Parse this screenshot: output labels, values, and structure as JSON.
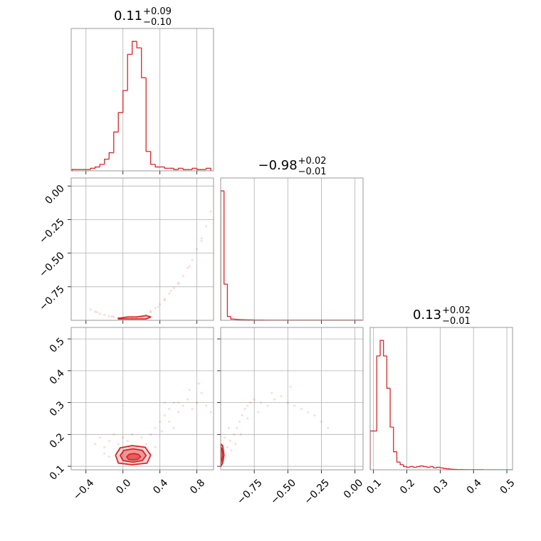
{
  "chart_data": [
    {
      "type": "histogram",
      "title": "0.11",
      "title_sup": "+0.09",
      "title_sub": "−0.10",
      "color": "#d62728",
      "grid": true,
      "xtick_labels": false,
      "bins": [
        -0.55,
        -0.5,
        -0.45,
        -0.4,
        -0.35,
        -0.3,
        -0.25,
        -0.2,
        -0.15,
        -0.1,
        -0.05,
        0,
        0.05,
        0.1,
        0.15,
        0.2,
        0.25,
        0.3,
        0.35,
        0.4,
        0.45,
        0.5,
        0.55,
        0.6,
        0.65,
        0.7,
        0.75,
        0.8,
        0.85,
        0.9,
        0.95
      ],
      "values": [
        1,
        1,
        1,
        1,
        2,
        3,
        5,
        9,
        14,
        30,
        45,
        62,
        90,
        100,
        95,
        72,
        15,
        5,
        3,
        3,
        2,
        2,
        1,
        2,
        1,
        1,
        2,
        1,
        1,
        2
      ],
      "xlim": [
        -0.56,
        0.98
      ],
      "xticks": [
        {
          "value": -0.4,
          "label": "−0.4"
        },
        {
          "value": 0,
          "label": "0.0"
        },
        0.4,
        0.8
      ],
      "ylim": [
        0,
        110
      ]
    },
    {
      "type": "scatter",
      "color": "#d62728",
      "grid": true,
      "xtick_labels": false,
      "ytick_labels": true,
      "x": [
        -0.35,
        -0.3,
        -0.25,
        -0.2,
        -0.15,
        -0.1,
        -0.05,
        0.0,
        0.05,
        0.1,
        0.15,
        0.2,
        0.25,
        0.3,
        0.35,
        0.4,
        0.45,
        0.5,
        0.55,
        0.6,
        0.65,
        0.7,
        0.75,
        0.8,
        0.85,
        0.9,
        0.95,
        0.3,
        0.45,
        0.6,
        0.72,
        0.85,
        -0.28,
        -0.12,
        0.38,
        0.52
      ],
      "y": [
        -0.92,
        -0.935,
        -0.95,
        -0.96,
        -0.97,
        -0.975,
        -0.98,
        -0.985,
        -0.985,
        -0.985,
        -0.98,
        -0.975,
        -0.96,
        -0.94,
        -0.91,
        -0.88,
        -0.84,
        -0.8,
        -0.76,
        -0.72,
        -0.67,
        -0.61,
        -0.55,
        -0.47,
        -0.39,
        -0.3,
        -0.19,
        -0.93,
        -0.85,
        -0.73,
        -0.6,
        -0.41,
        -0.94,
        -0.97,
        -0.9,
        -0.78
      ],
      "contours": [
        {
          "x": [
            -0.05,
            0.05,
            0.15,
            0.25,
            0.3,
            0.25,
            0.15,
            0.05,
            -0.05
          ],
          "y": [
            -0.985,
            -0.975,
            -0.975,
            -0.965,
            -0.975,
            -0.99,
            -0.99,
            -0.99,
            -0.99
          ]
        }
      ],
      "xlim": [
        -0.56,
        0.98
      ],
      "xticks": [
        {
          "value": -0.4,
          "label": "−0.4"
        },
        {
          "value": 0,
          "label": "0.0"
        },
        0.4,
        0.8
      ],
      "ylim": [
        -1.0,
        0.06
      ],
      "yticks": [
        {
          "value": 0,
          "label": "0.00"
        },
        {
          "value": -0.25,
          "label": "−0.25"
        },
        {
          "value": -0.5,
          "label": "−0.50"
        },
        {
          "value": -0.75,
          "label": "−0.75"
        }
      ]
    },
    {
      "type": "histogram",
      "title": "−0.98",
      "title_sup": "+0.02",
      "title_sub": "−0.01",
      "color": "#d62728",
      "grid": true,
      "xtick_labels": false,
      "bins": [
        -1.0,
        -0.975,
        -0.95,
        -0.925,
        -0.9,
        -0.875,
        -0.85,
        -0.825,
        -0.8,
        -0.775,
        -0.75,
        -0.725,
        -0.7,
        -0.675,
        -0.65,
        -0.625,
        -0.6,
        -0.575,
        -0.55,
        -0.525,
        -0.5,
        -0.475,
        -0.45,
        -0.425,
        -0.4,
        -0.375,
        -0.35,
        -0.325,
        -0.3,
        -0.275,
        -0.25,
        -0.225,
        -0.2,
        -0.175,
        -0.15,
        -0.125,
        -0.1,
        -0.075,
        -0.05,
        -0.025,
        0.0,
        0.025,
        0.05
      ],
      "values": [
        1000,
        280,
        30,
        10,
        8,
        6,
        5,
        4,
        3,
        3,
        2,
        2,
        2,
        1,
        1,
        1,
        1,
        1,
        1,
        1,
        1,
        1,
        1,
        1,
        1,
        1,
        1,
        1,
        1,
        1,
        1,
        1,
        1,
        1,
        1,
        1,
        1,
        1,
        1,
        1,
        1,
        1
      ],
      "xlim": [
        -1.0,
        0.06
      ],
      "xticks": [
        {
          "value": -0.75,
          "label": "−0.75"
        },
        {
          "value": -0.5,
          "label": "−0.50"
        },
        {
          "value": -0.25,
          "label": "−0.25"
        },
        {
          "value": 0,
          "label": "0.00"
        }
      ],
      "ylim": [
        0,
        1100
      ]
    },
    {
      "type": "scatter",
      "color": "#d62728",
      "grid": true,
      "xtick_labels": true,
      "ytick_labels": true,
      "x": [
        -0.3,
        -0.25,
        -0.2,
        -0.15,
        -0.1,
        -0.05,
        0.0,
        0.05,
        0.1,
        0.2,
        0.25,
        0.3,
        0.35,
        0.4,
        0.45,
        0.5,
        0.55,
        0.6,
        0.65,
        0.7,
        0.75,
        0.8,
        0.85,
        0.9,
        0.95,
        0.42,
        0.5,
        0.6,
        0.72,
        0.82,
        -0.2,
        0.35,
        0.3,
        -0.15,
        0.45,
        0.55
      ],
      "y": [
        0.17,
        0.19,
        0.16,
        0.18,
        0.2,
        0.17,
        0.19,
        0.18,
        0.2,
        0.19,
        0.17,
        0.2,
        0.22,
        0.24,
        0.26,
        0.28,
        0.3,
        0.27,
        0.29,
        0.31,
        0.28,
        0.3,
        0.33,
        0.29,
        0.27,
        0.21,
        0.24,
        0.3,
        0.34,
        0.36,
        0.14,
        0.16,
        0.14,
        0.13,
        0.3,
        0.22
      ],
      "contours": [
        {
          "x": [
            -0.08,
            -0.03,
            0.1,
            0.24,
            0.3,
            0.26,
            0.1,
            -0.05
          ],
          "y": [
            0.135,
            0.158,
            0.165,
            0.16,
            0.135,
            0.11,
            0.105,
            0.11
          ]
        },
        {
          "x": [
            -0.03,
            0.01,
            0.11,
            0.21,
            0.25,
            0.21,
            0.11,
            0.0
          ],
          "y": [
            0.134,
            0.15,
            0.155,
            0.15,
            0.134,
            0.118,
            0.113,
            0.118
          ]
        },
        {
          "x": [
            0.04,
            0.07,
            0.12,
            0.17,
            0.19,
            0.16,
            0.11,
            0.06
          ],
          "y": [
            0.13,
            0.138,
            0.14,
            0.137,
            0.13,
            0.122,
            0.12,
            0.122
          ]
        }
      ],
      "xlim": [
        -0.56,
        0.98
      ],
      "xticks": [
        {
          "value": -0.4,
          "label": "−0.4"
        },
        {
          "value": 0,
          "label": "0.0"
        },
        0.4,
        0.8
      ],
      "ylim": [
        0.089,
        0.536
      ],
      "yticks": [
        0.1,
        0.2,
        0.3,
        0.4,
        0.5
      ]
    },
    {
      "type": "scatter",
      "color": "#d62728",
      "grid": true,
      "xtick_labels": true,
      "ytick_labels": false,
      "x": [
        -0.98,
        -0.95,
        -0.93,
        -0.9,
        -0.88,
        -0.86,
        -0.84,
        -0.82,
        -0.8,
        -0.78,
        -0.75,
        -0.7,
        -0.65,
        -0.6,
        -0.55,
        -0.5,
        -0.45,
        -0.4,
        -0.35,
        -0.3,
        -0.25,
        -0.2,
        -0.92,
        -0.89,
        -0.85,
        -0.8,
        -0.62,
        -0.48,
        -0.97,
        -0.94,
        -0.72
      ],
      "y": [
        0.13,
        0.16,
        0.18,
        0.2,
        0.22,
        0.24,
        0.26,
        0.28,
        0.29,
        0.3,
        0.31,
        0.3,
        0.29,
        0.31,
        0.32,
        0.3,
        0.29,
        0.28,
        0.27,
        0.26,
        0.24,
        0.22,
        0.15,
        0.17,
        0.2,
        0.25,
        0.33,
        0.35,
        0.19,
        0.22,
        0.27
      ],
      "contours": [
        {
          "x": [
            -0.999,
            -0.985,
            -0.975,
            -0.985,
            -0.999
          ],
          "y": [
            0.1,
            0.11,
            0.135,
            0.165,
            0.17
          ]
        },
        {
          "x": [
            -0.999,
            -0.99,
            -0.985,
            -0.99,
            -0.999
          ],
          "y": [
            0.11,
            0.12,
            0.135,
            0.155,
            0.16
          ]
        }
      ],
      "xlim": [
        -1.0,
        0.06
      ],
      "xticks": [
        {
          "value": -0.75,
          "label": "−0.75"
        },
        {
          "value": -0.5,
          "label": "−0.50"
        },
        {
          "value": -0.25,
          "label": "−0.25"
        },
        {
          "value": 0,
          "label": "0.00"
        }
      ],
      "ylim": [
        0.089,
        0.536
      ],
      "yticks": [
        0.1,
        0.2,
        0.3,
        0.4,
        0.5
      ]
    },
    {
      "type": "histogram",
      "title": "0.13",
      "title_sup": "+0.02",
      "title_sub": "−0.01",
      "color": "#d62728",
      "grid": true,
      "xtick_labels": true,
      "bins": [
        0.09,
        0.1,
        0.11,
        0.12,
        0.13,
        0.14,
        0.15,
        0.16,
        0.17,
        0.18,
        0.19,
        0.2,
        0.21,
        0.22,
        0.23,
        0.24,
        0.25,
        0.26,
        0.27,
        0.28,
        0.29,
        0.3,
        0.31,
        0.32,
        0.33,
        0.34,
        0.35,
        0.36,
        0.37,
        0.38,
        0.39,
        0.4,
        0.41,
        0.42,
        0.43,
        0.44,
        0.45,
        0.46,
        0.47,
        0.48,
        0.49,
        0.5,
        0.51,
        0.52
      ],
      "values": [
        300,
        300,
        880,
        1000,
        880,
        630,
        330,
        140,
        60,
        40,
        25,
        20,
        25,
        20,
        25,
        30,
        25,
        20,
        25,
        15,
        20,
        15,
        10,
        8,
        5,
        3,
        2,
        2,
        1,
        1,
        1,
        1,
        1,
        1,
        0,
        0,
        0,
        0,
        0,
        0,
        0,
        0,
        0
      ],
      "xlim": [
        0.09,
        0.517
      ],
      "xticks": [
        0.1,
        0.2,
        0.3,
        0.4,
        0.5
      ],
      "ylim": [
        0,
        1100
      ]
    }
  ]
}
